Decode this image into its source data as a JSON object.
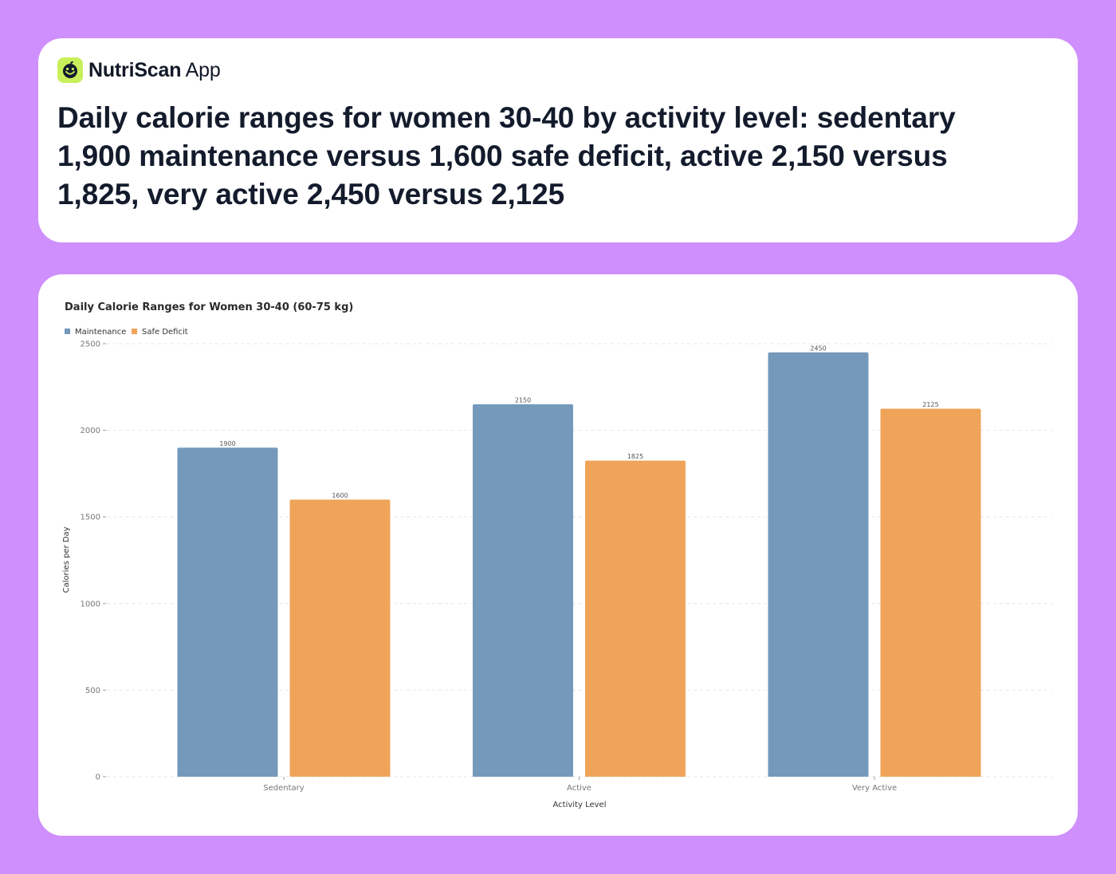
{
  "brand": {
    "name_bold": "NutriScan",
    "name_light": "App",
    "logo_icon": "smiley-leaf-icon",
    "logo_color": "#c9ef5b"
  },
  "headline": "Daily calorie ranges for women 30-40 by activity level: sedentary 1,900 maintenance versus 1,600 safe deficit, active 2,150 versus 1,825, very active 2,450 versus 2,125",
  "colors": {
    "background": "#cf8ffd",
    "card": "#ffffff",
    "maintenance": "#7499bb",
    "safe_deficit": "#efa459"
  },
  "chart_data": {
    "type": "bar",
    "title": "Daily Calorie Ranges for Women 30-40 (60-75 kg)",
    "xlabel": "Activity Level",
    "ylabel": "Calories per Day",
    "categories": [
      "Sedentary",
      "Active",
      "Very Active"
    ],
    "series": [
      {
        "name": "Maintenance",
        "values": [
          1900,
          2150,
          2450
        ],
        "color": "#7499bb"
      },
      {
        "name": "Safe Deficit",
        "values": [
          1600,
          1825,
          2125
        ],
        "color": "#efa459"
      }
    ],
    "ylim": [
      0,
      2500
    ],
    "yticks": [
      0,
      500,
      1000,
      1500,
      2000,
      2500
    ],
    "grid": true,
    "legend_position": "top-left",
    "data_labels": true
  }
}
